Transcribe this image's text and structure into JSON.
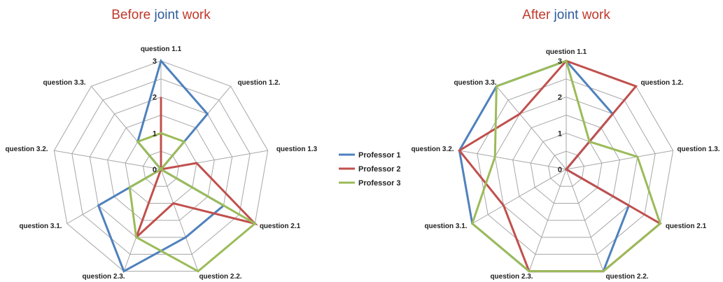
{
  "chart_data": [
    {
      "type": "radar",
      "title_parts": [
        "Before",
        "joint",
        "work"
      ],
      "axes": [
        "question 1.1",
        "question 1.2.",
        "question 1.3",
        "question 2.1",
        "question 2.2.",
        "question 2.3.",
        "question 3.1.",
        "question 3.2.",
        "question 3.3."
      ],
      "rlim": [
        0,
        3
      ],
      "ticks": [
        "0",
        "1",
        "2",
        "3"
      ],
      "series": [
        {
          "name": "Professor 1",
          "color": "#4f81bd",
          "values": [
            3,
            2,
            0,
            2,
            2,
            3,
            2,
            0,
            1
          ]
        },
        {
          "name": "Professor 2",
          "color": "#c0504d",
          "values": [
            2,
            0,
            1,
            3,
            1,
            2,
            0,
            0,
            0
          ]
        },
        {
          "name": "Professor 3",
          "color": "#9bbb59",
          "values": [
            1,
            1,
            0,
            3,
            3,
            2,
            1,
            0,
            1
          ]
        }
      ]
    },
    {
      "type": "radar",
      "title_parts": [
        "After",
        "joint",
        "work"
      ],
      "axes": [
        "question 1.1",
        "question 1.2.",
        "question 1.3.",
        "question 2.1",
        "question 2.2.",
        "question 2.3.",
        "question 3.1.",
        "question 3.2.",
        "question 3.3."
      ],
      "rlim": [
        0,
        3
      ],
      "ticks": [
        "0",
        "1",
        "2",
        "3"
      ],
      "series": [
        {
          "name": "Professor 1",
          "color": "#4f81bd",
          "values": [
            3,
            2,
            0,
            2,
            3,
            3,
            3,
            3,
            3
          ]
        },
        {
          "name": "Professor 2",
          "color": "#c0504d",
          "values": [
            3,
            3,
            0,
            3,
            3,
            3,
            2,
            3,
            2
          ]
        },
        {
          "name": "Professor 3",
          "color": "#9bbb59",
          "values": [
            3,
            1,
            2,
            3,
            3,
            3,
            3,
            2,
            3
          ]
        }
      ]
    }
  ],
  "legend": {
    "placement": "center",
    "items": [
      {
        "name": "Professor 1",
        "color": "#4f81bd"
      },
      {
        "name": "Professor 2",
        "color": "#c0504d"
      },
      {
        "name": "Professor 3",
        "color": "#9bbb59"
      }
    ]
  },
  "colors": {
    "title_red": "#c0392b",
    "title_blue": "#2e5a9c",
    "grid": "#a6a6a6"
  }
}
